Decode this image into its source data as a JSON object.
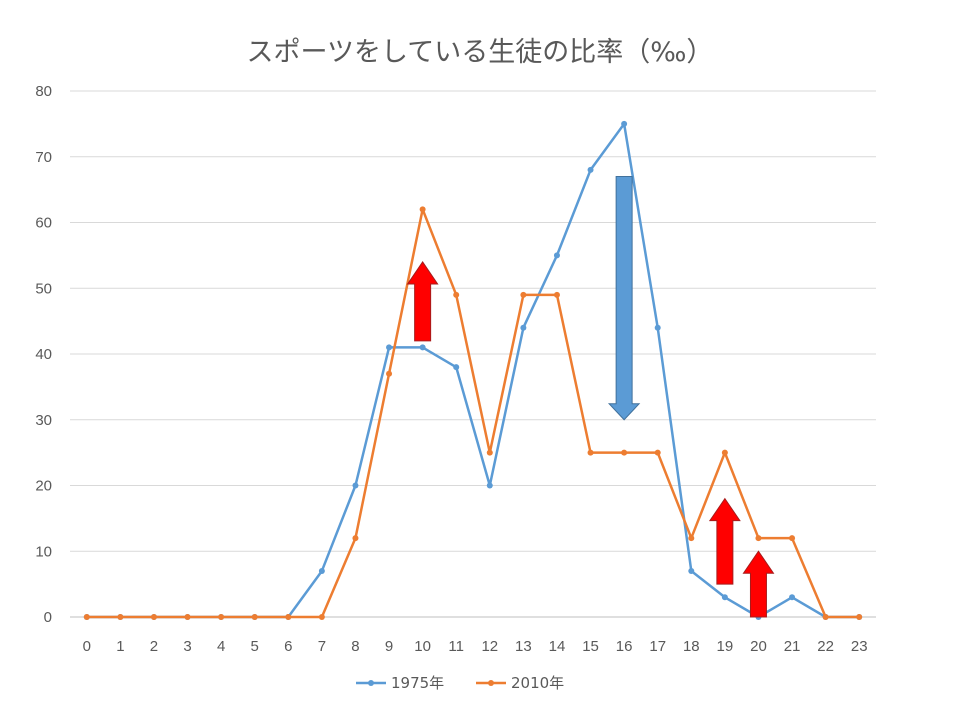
{
  "chart_data": {
    "type": "line",
    "title": "スポーツをしている生徒の比率（‰）",
    "xlabel": "",
    "ylabel": "",
    "x": [
      "0",
      "1",
      "2",
      "3",
      "4",
      "5",
      "6",
      "7",
      "8",
      "9",
      "10",
      "11",
      "12",
      "13",
      "14",
      "15",
      "16",
      "17",
      "18",
      "19",
      "20",
      "21",
      "22",
      "23"
    ],
    "ylim": [
      0,
      80
    ],
    "yticks": [
      0,
      10,
      20,
      30,
      40,
      50,
      60,
      70,
      80
    ],
    "grid": true,
    "legend_position": "bottom",
    "series": [
      {
        "name": "1975年",
        "color": "#5b9bd5",
        "values": [
          0,
          0,
          0,
          0,
          0,
          0,
          0,
          7,
          20,
          41,
          41,
          38,
          20,
          44,
          55,
          68,
          75,
          44,
          7,
          3,
          0,
          3,
          0,
          0
        ]
      },
      {
        "name": "2010年",
        "color": "#ed7d31",
        "values": [
          0,
          0,
          0,
          0,
          0,
          0,
          0,
          0,
          12,
          37,
          62,
          49,
          25,
          49,
          49,
          25,
          25,
          25,
          12,
          25,
          12,
          12,
          0,
          0
        ]
      }
    ],
    "annotations": [
      {
        "kind": "arrow-up",
        "color": "#ff0000",
        "x": "10",
        "from": 42,
        "to": 54
      },
      {
        "kind": "arrow-down",
        "color": "#5b9bd5",
        "x": "16",
        "from": 67,
        "to": 30
      },
      {
        "kind": "arrow-up",
        "color": "#ff0000",
        "x": "19",
        "from": 5,
        "to": 18
      },
      {
        "kind": "arrow-up",
        "color": "#ff0000",
        "x": "20",
        "from": 0,
        "to": 10
      }
    ]
  }
}
